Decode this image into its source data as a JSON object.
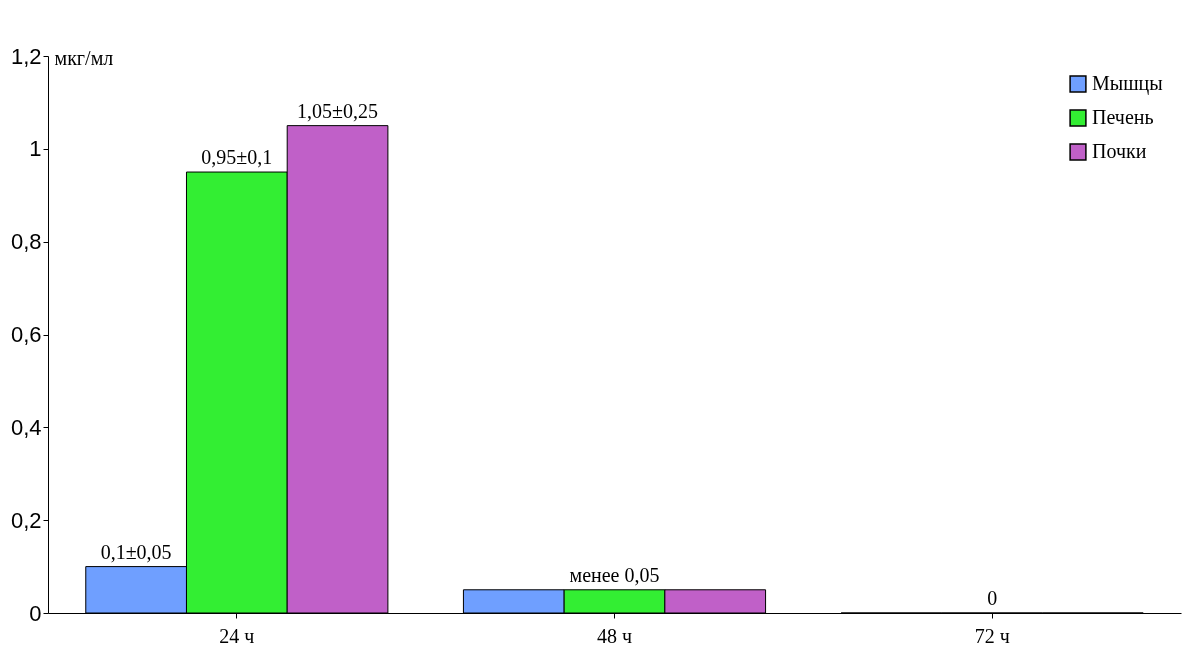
{
  "chart_data": {
    "type": "bar",
    "ylabel": "мкг/мл",
    "categories": [
      "24 ч",
      "48 ч",
      "72 ч"
    ],
    "series": [
      {
        "name": "Мышцы",
        "color": "#6f9fff",
        "values": [
          0.1,
          0.05,
          0
        ],
        "value_labels": [
          "0,1±0,05",
          null,
          null
        ]
      },
      {
        "name": "Печень",
        "color": "#33ee33",
        "values": [
          0.95,
          0.05,
          0
        ],
        "value_labels": [
          "0,95±0,1",
          "менее 0,05",
          "0"
        ]
      },
      {
        "name": "Почки",
        "color": "#c060c8",
        "values": [
          1.05,
          0.05,
          0
        ],
        "value_labels": [
          "1,05±0,25",
          null,
          null
        ]
      }
    ],
    "ylim": [
      0,
      1.2
    ],
    "yticks": [
      0,
      {
        "value": 0.2,
        "label": "0,2"
      },
      {
        "value": 0.4,
        "label": "0,4"
      },
      {
        "value": 0.6,
        "label": "0,6"
      },
      {
        "value": 0.8,
        "label": "0,8"
      },
      1,
      {
        "value": 1.2,
        "label": "1,2"
      }
    ],
    "grid": false,
    "legend": "top right"
  }
}
